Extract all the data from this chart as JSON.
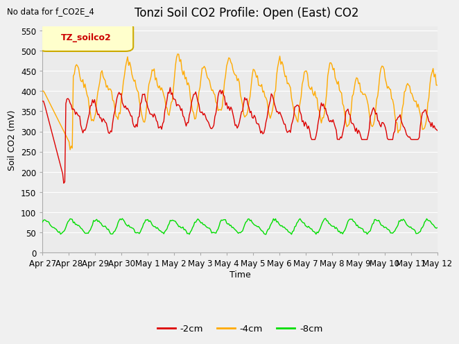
{
  "title": "Tonzi Soil CO2 Profile: Open (East) CO2",
  "subtitle": "No data for f_CO2E_4",
  "ylabel": "Soil CO2 (mV)",
  "xlabel": "Time",
  "ylim": [
    0,
    560
  ],
  "yticks": [
    0,
    50,
    100,
    150,
    200,
    250,
    300,
    350,
    400,
    450,
    500,
    550
  ],
  "legend_label": "TZ_soilco2",
  "series": {
    "neg2cm": {
      "label": "-2cm",
      "color": "#dd0000"
    },
    "neg4cm": {
      "label": "-4cm",
      "color": "#ffaa00"
    },
    "neg8cm": {
      "label": "-8cm",
      "color": "#00dd00"
    }
  },
  "x_tick_labels": [
    "Apr 27",
    "Apr 28",
    "Apr 29",
    "Apr 30",
    "May 1",
    "May 2",
    "May 3",
    "May 4",
    "May 5",
    "May 6",
    "May 7",
    "May 8",
    "May 9",
    "May 10",
    "May 11",
    "May 12"
  ],
  "bg_color": "#f0f0f0",
  "plot_bg_color": "#ebebeb",
  "title_fontsize": 12,
  "axis_fontsize": 9,
  "tick_fontsize": 8.5
}
